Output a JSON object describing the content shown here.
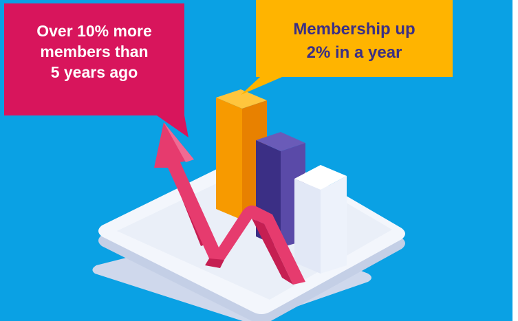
{
  "callouts": {
    "left": {
      "lines": [
        "Over 10% more",
        "members than",
        "5 years ago"
      ]
    },
    "right": {
      "lines": [
        "Membership up",
        "2% in a year"
      ]
    }
  },
  "icons": {
    "platform": "platform-icon",
    "bars": "bar-chart-icon",
    "arrow": "trend-arrow-icon"
  },
  "colors": {
    "background": "#0aa1e4",
    "callout_left": "#d8155c",
    "callout_right": "#ffb400",
    "bar_orange": "#f79a00",
    "bar_purple": "#4b3a9a",
    "bar_white": "#edf2fb",
    "arrow": "#e63b6e",
    "platform": "#f3f6fc"
  }
}
